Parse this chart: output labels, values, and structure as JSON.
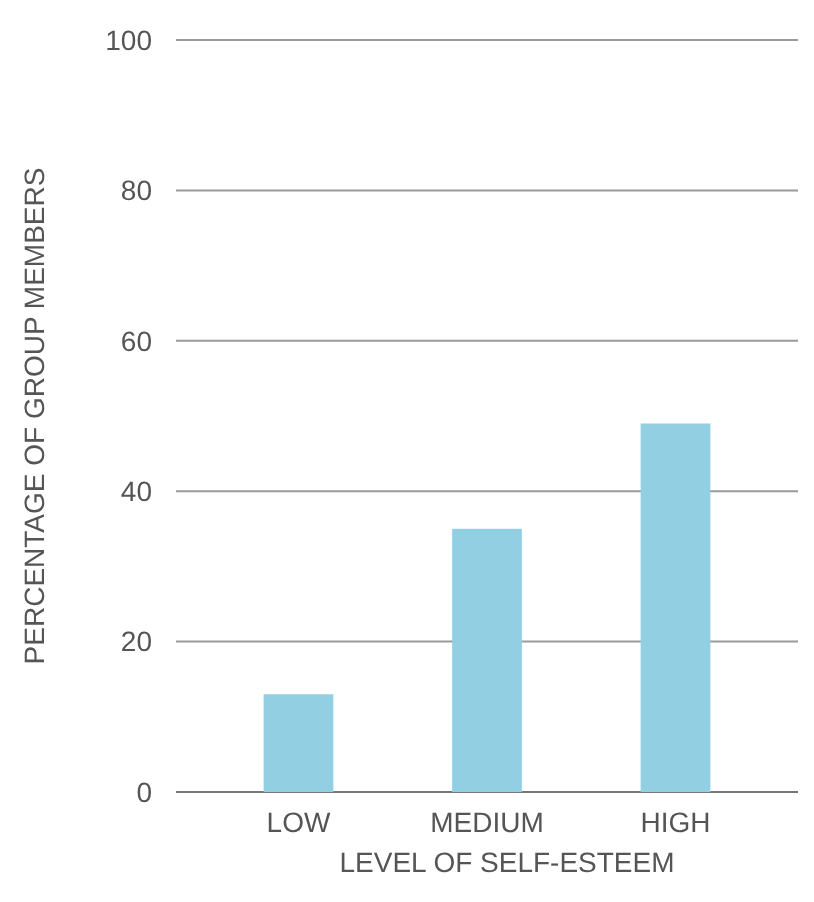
{
  "chart_data": {
    "type": "bar",
    "xlabel": "LEVEL OF SELF-ESTEEM",
    "ylabel": "PERCENTAGE OF GROUP MEMBERS",
    "categories": [
      "LOW",
      "MEDIUM",
      "HIGH"
    ],
    "values": [
      13,
      35,
      49
    ],
    "color": "#93cfe2",
    "ylim": [
      0,
      100
    ],
    "yticks": [
      0,
      20,
      40,
      60,
      80,
      100
    ],
    "grid": "y"
  }
}
